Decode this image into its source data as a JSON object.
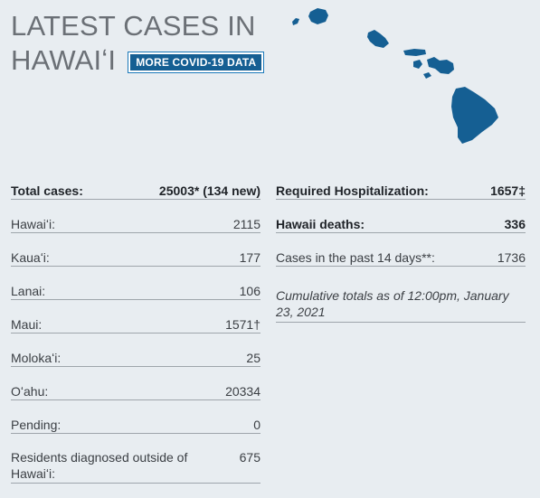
{
  "header": {
    "title_line1": "LATEST CASES IN",
    "title_line2": "HAWAIʻI",
    "more_button_label": "MORE COVID-19 DATA"
  },
  "map": {
    "icon": "hawaii-islands-map-icon",
    "color": "#155f93"
  },
  "left_column": {
    "rows": [
      {
        "label": "Total cases:",
        "value": "25003* (134 new)"
      },
      {
        "label": "Hawaiʻi:",
        "value": "2115"
      },
      {
        "label": "Kauaʻi:",
        "value": "177"
      },
      {
        "label": "Lanai:",
        "value": "106"
      },
      {
        "label": "Maui:",
        "value": "1571†"
      },
      {
        "label": "Molokaʻi:",
        "value": "25"
      },
      {
        "label": "Oʻahu:",
        "value": "20334"
      },
      {
        "label": "Pending:",
        "value": "0"
      },
      {
        "label": "Residents diagnosed outside of Hawaiʻi:",
        "value": "675"
      }
    ]
  },
  "right_column": {
    "rows": [
      {
        "label": "Required Hospitalization:",
        "value": "1657‡"
      },
      {
        "label": "Hawaii deaths:",
        "value": "336"
      },
      {
        "label": "Cases in the past 14 days**:",
        "value": "1736"
      }
    ],
    "note": "Cumulative totals as of 12:00pm, January 23, 2021"
  },
  "colors": {
    "background": "#e8edf1",
    "accent": "#155f93",
    "text": "#3b3f44"
  }
}
